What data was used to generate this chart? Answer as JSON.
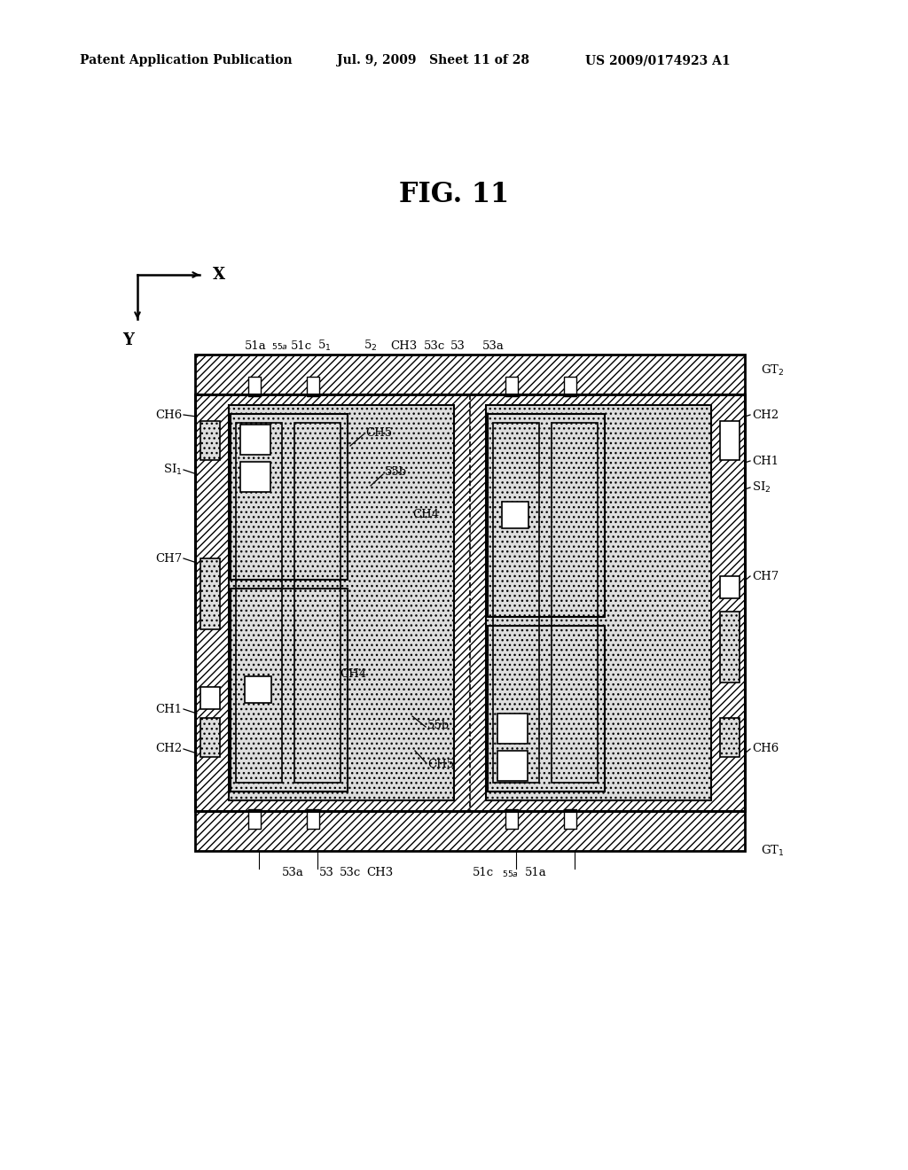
{
  "title": "FIG. 11",
  "header_left": "Patent Application Publication",
  "header_mid": "Jul. 9, 2009   Sheet 11 of 28",
  "header_right": "US 2009/0174923 A1",
  "bg_color": "#ffffff"
}
